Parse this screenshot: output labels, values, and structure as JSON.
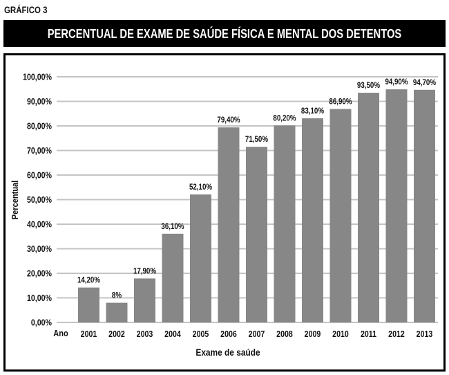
{
  "figure_label": "GRÁFICO 3",
  "colors": {
    "bar": "#878787",
    "grid": "#c4c4c4",
    "title_bg": "#000000",
    "title_fg": "#ffffff"
  },
  "chart_data": {
    "type": "bar",
    "title": "PERCENTUAL DE EXAME DE SAÚDE FÍSICA E MENTAL DOS DETENTOS",
    "xlabel": "Exame de saúde",
    "ylabel": "Percentual",
    "x_axis_prefix": "Ano",
    "categories": [
      "2001",
      "2002",
      "2003",
      "2004",
      "2005",
      "2006",
      "2007",
      "2008",
      "2009",
      "2010",
      "2011",
      "2012",
      "2013"
    ],
    "values": [
      14.2,
      8,
      17.9,
      36.1,
      52.1,
      79.4,
      71.5,
      80.2,
      83.1,
      86.9,
      93.5,
      94.9,
      94.7
    ],
    "data_labels": [
      "14,20%",
      "8%",
      "17,90%",
      "36,10%",
      "52,10%",
      "79,40%",
      "71,50%",
      "80,20%",
      "83,10%",
      "86,90%",
      "93,50%",
      "94,90%",
      "94,70%"
    ],
    "yticks": [
      0,
      10,
      20,
      30,
      40,
      50,
      60,
      70,
      80,
      90,
      100
    ],
    "ytick_labels": [
      "0,00%",
      "10,00%",
      "20,00%",
      "30,00%",
      "40,00%",
      "50,00%",
      "60,00%",
      "70,00%",
      "80,00%",
      "90,00%",
      "100,00%"
    ],
    "ylim": [
      0,
      100
    ],
    "grid": true,
    "legend": "none"
  }
}
